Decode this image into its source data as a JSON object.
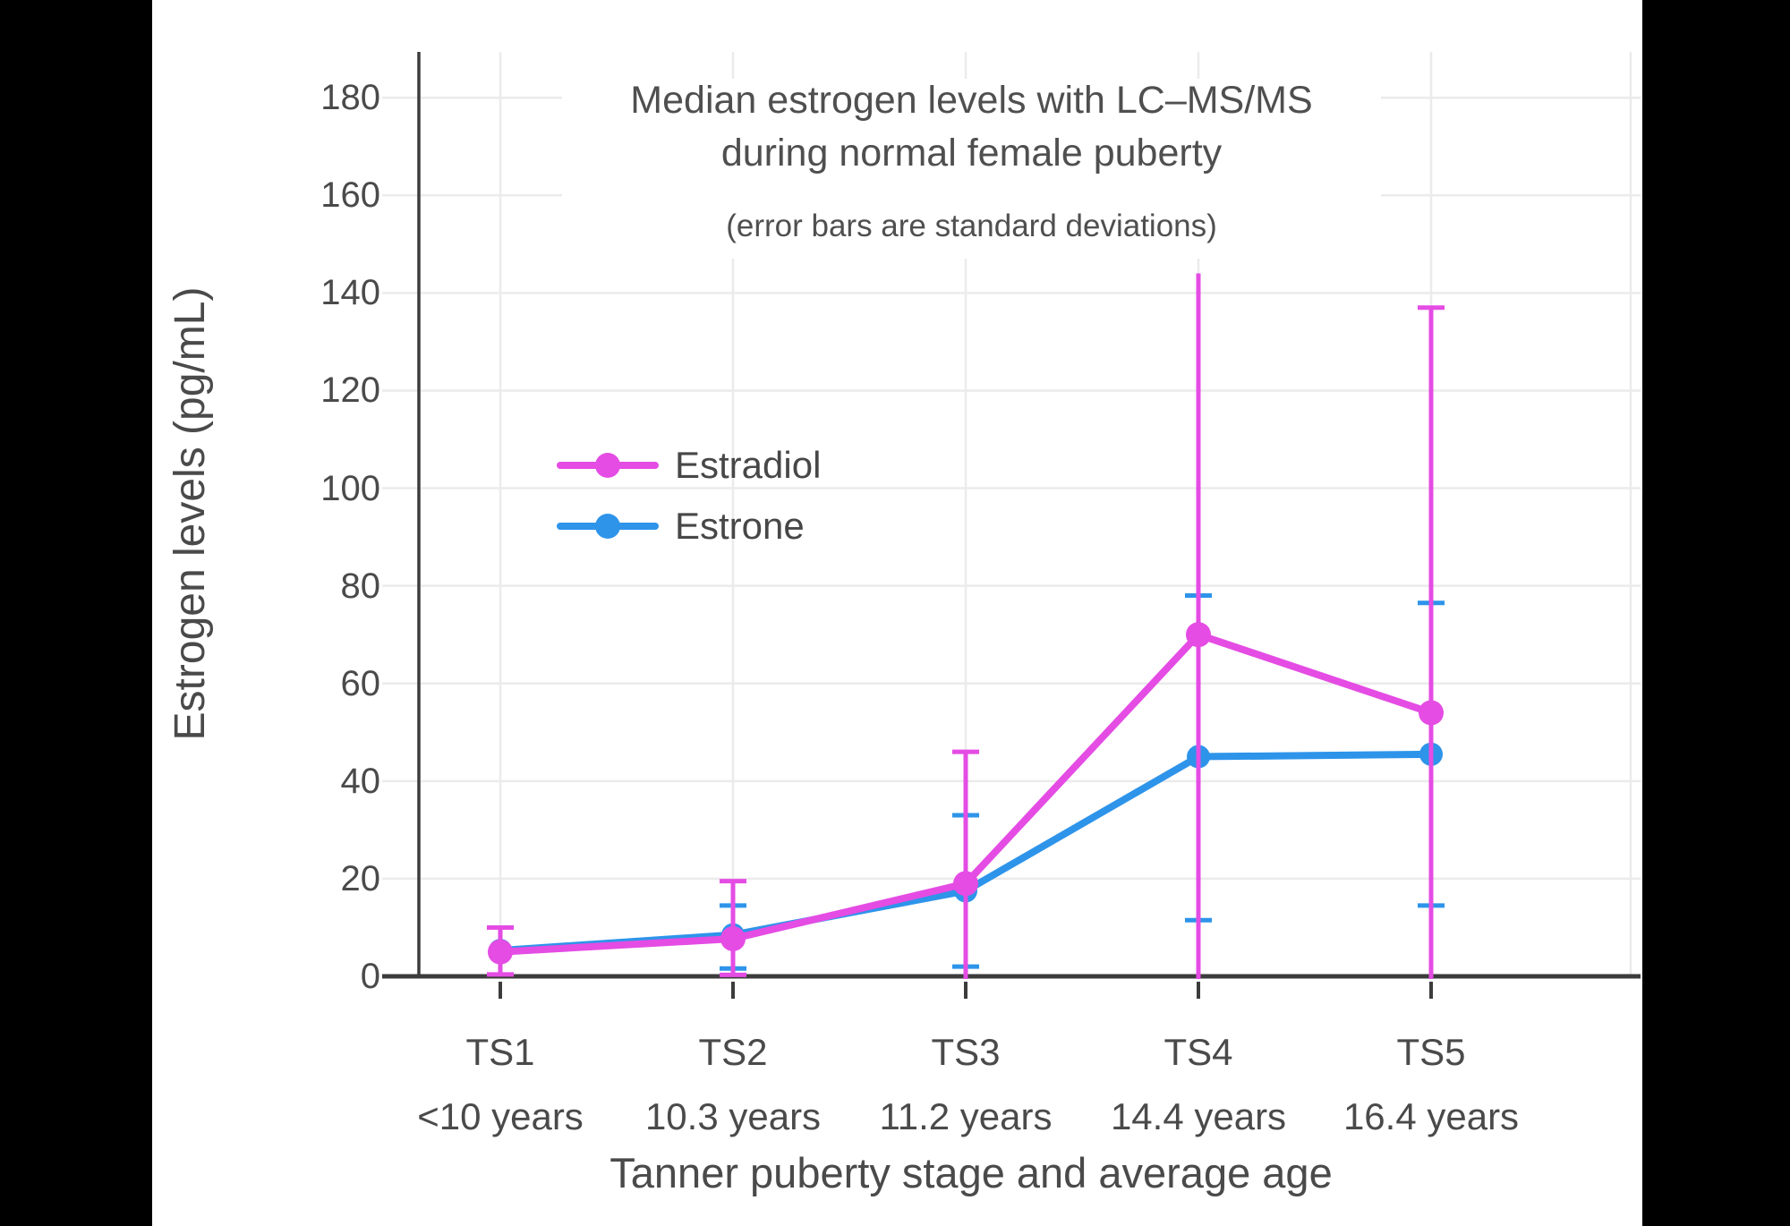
{
  "page": {
    "background": "#000000",
    "panel_background": "#ffffff"
  },
  "chart_data": {
    "type": "line",
    "title": "Median estrogen levels with LC–MS/MS",
    "title_line2": "during normal female puberty",
    "subtitle": "(error bars are standard deviations)",
    "xlabel": "Tanner puberty stage and average age",
    "ylabel": "Estrogen levels (pg/mL)",
    "x_categories": [
      "TS1",
      "TS2",
      "TS3",
      "TS4",
      "TS5"
    ],
    "x_ages": [
      "<10 years",
      "10.3 years",
      "11.2 years",
      "14.4 years",
      "16.4 years"
    ],
    "y_ticks": [
      0,
      20,
      40,
      60,
      80,
      100,
      120,
      140,
      160,
      180
    ],
    "ylim": [
      0,
      190
    ],
    "grid": true,
    "axis_color": "#3c3c3c",
    "grid_color": "#ebebeb",
    "text_color": "#4a4a4a",
    "legend": {
      "position": "inside-upper-left",
      "entries": [
        "Estradiol",
        "Estrone"
      ]
    },
    "series": [
      {
        "name": "Estradiol",
        "color": "#e44ce4",
        "values": [
          5,
          7.7,
          19,
          70,
          54
        ],
        "error_bars": [
          {
            "low": 0.4,
            "high": 10,
            "cap_low": true,
            "cap_high": true
          },
          {
            "low": 0.3,
            "high": 19.5,
            "cap_low": true,
            "cap_high": true
          },
          {
            "low": 0,
            "high": 46,
            "cap_low": false,
            "cap_high": true
          },
          {
            "low": 0,
            "high": 144,
            "cap_low": false,
            "cap_high": false
          },
          {
            "low": 0,
            "high": 137,
            "cap_low": false,
            "cap_high": true
          }
        ]
      },
      {
        "name": "Estrone",
        "color": "#2e94ea",
        "values": [
          5.3,
          8.5,
          17.5,
          45,
          45.5
        ],
        "error_bars": [
          null,
          {
            "low": 1.6,
            "high": 14.5,
            "cap_low": true,
            "cap_high": true
          },
          {
            "low": 2,
            "high": 33,
            "cap_low": true,
            "cap_high": true
          },
          {
            "low": 11.5,
            "high": 78,
            "cap_low": true,
            "cap_high": true
          },
          {
            "low": 14.5,
            "high": 76.5,
            "cap_low": true,
            "cap_high": true
          }
        ]
      }
    ]
  }
}
